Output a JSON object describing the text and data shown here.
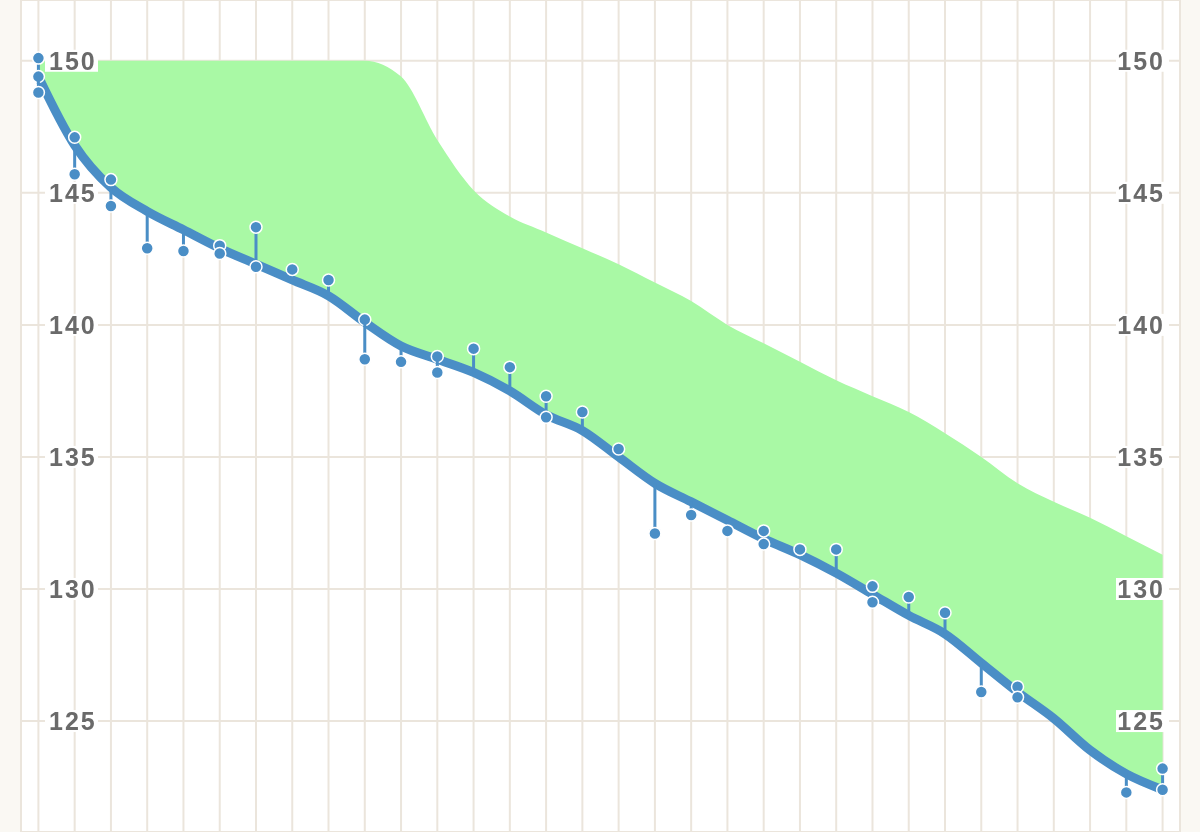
{
  "chart_data": {
    "type": "line",
    "categories": [
      null,
      null,
      null,
      null,
      null,
      null,
      null,
      null,
      null,
      null,
      null,
      null,
      null,
      null,
      null,
      null,
      null,
      null,
      null,
      null,
      null,
      null,
      null,
      null,
      null,
      null,
      null,
      null,
      null,
      null,
      null,
      null
    ],
    "series": [
      {
        "type": "area",
        "color": "#a9f9a5",
        "values": [
          150,
          null,
          150,
          150,
          150,
          150,
          150,
          150,
          150,
          150,
          149.4,
          147.0,
          145.1,
          144.1,
          143.5,
          142.9,
          142.3,
          141.6,
          140.9,
          140.0,
          139.3,
          138.6,
          137.9,
          137.3,
          136.7,
          135.9,
          135.0,
          134.0,
          133.3,
          132.7,
          132.0,
          131.3
        ]
      },
      {
        "color": "#4a8ec6",
        "values": [
          149.4,
          146.8,
          145.2,
          144.3,
          143.6,
          142.9,
          142.3,
          141.7,
          141.1,
          140.1,
          139.2,
          138.7,
          138.2,
          137.5,
          136.6,
          136.0,
          135.0,
          134.0,
          133.3,
          132.6,
          131.9,
          131.3,
          130.6,
          129.8,
          129.0,
          128.3,
          127.2,
          126.1,
          125.1,
          123.9,
          123.0,
          122.4
        ]
      },
      {
        "type": "scatter",
        "color": "#4a8ec6",
        "marker": "circle",
        "values": [
          150.1,
          147.1,
          145.5,
          142.9,
          142.8,
          143.0,
          143.7,
          142.1,
          141.7,
          140.2,
          138.6,
          138.8,
          139.1,
          138.4,
          137.3,
          136.7,
          135.3,
          132.1,
          132.8,
          132.2,
          132.2,
          131.5,
          131.5,
          130.1,
          129.7,
          129.1,
          126.1,
          126.3,
          null,
          null,
          122.3,
          123.2
        ]
      },
      {
        "type": "scatter",
        "color": "#4a8ec6",
        "marker": "circle",
        "values": [
          149.4,
          145.7,
          144.5,
          null,
          null,
          142.7,
          142.2,
          null,
          null,
          138.7,
          null,
          138.2,
          null,
          null,
          136.5,
          null,
          null,
          null,
          null,
          null,
          131.7,
          null,
          null,
          129.5,
          null,
          null,
          null,
          125.9,
          null,
          null,
          null,
          122.4
        ]
      },
      {
        "type": "scatter",
        "color": "#4a8ec6",
        "marker": "circle",
        "values": [
          148.8,
          null,
          null,
          null,
          null,
          null,
          null,
          null,
          null,
          null,
          null,
          null,
          null,
          null,
          null,
          null,
          null,
          null,
          null,
          null,
          null,
          null,
          null,
          null,
          null,
          null,
          null,
          null,
          null,
          null,
          null,
          null
        ]
      }
    ],
    "ylim": [
      120.8,
      152.3
    ],
    "yticks": [
      125,
      130,
      135,
      140,
      145,
      150
    ],
    "y2lim": [
      120.8,
      152.3
    ],
    "y2ticks": [
      125,
      130,
      135,
      140,
      145,
      150
    ],
    "grid": true,
    "tick_labels": "y"
  }
}
